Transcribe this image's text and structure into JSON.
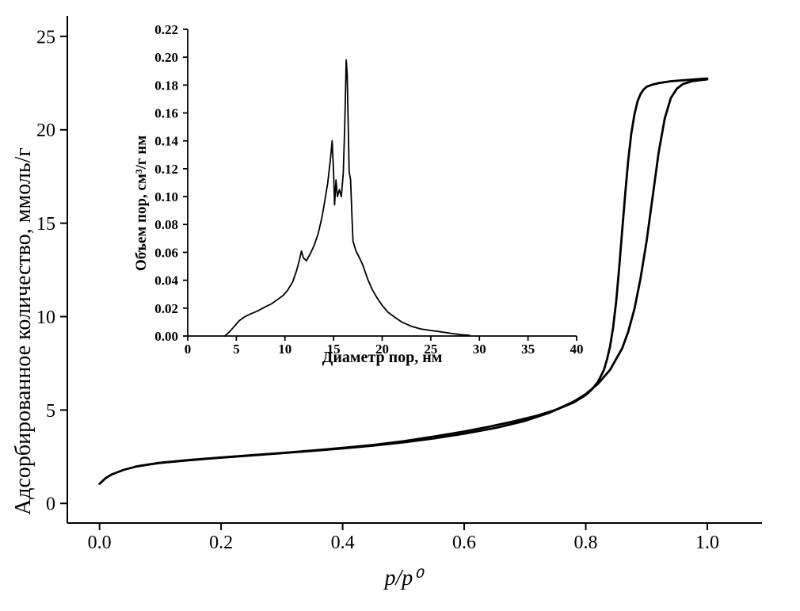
{
  "figure": {
    "background": "#ffffff",
    "line_color": "#000000"
  },
  "chart_data": [
    {
      "id": "main-isotherm",
      "type": "line",
      "title": "",
      "xlabel": "p/p⁰",
      "ylabel": "Адсорбированное количество, ммоль/г",
      "xlim": [
        0,
        1.0
      ],
      "ylim": [
        0,
        25
      ],
      "xticks": [
        0.0,
        0.2,
        0.4,
        0.6,
        0.8,
        1.0
      ],
      "xtick_labels": [
        "0.0",
        "0.2",
        "0.4",
        "0.6",
        "0.8",
        "1.0"
      ],
      "yticks": [
        0,
        5,
        10,
        15,
        20,
        25
      ],
      "ytick_labels": [
        "0",
        "5",
        "10",
        "15",
        "20",
        "25"
      ],
      "grid": false,
      "legend": "none",
      "line_color": "#000000",
      "series": [
        {
          "name": "adsorption",
          "points": [
            [
              0,
              1.05
            ],
            [
              0.01,
              1.35
            ],
            [
              0.02,
              1.55
            ],
            [
              0.04,
              1.8
            ],
            [
              0.06,
              1.97
            ],
            [
              0.08,
              2.08
            ],
            [
              0.1,
              2.17
            ],
            [
              0.15,
              2.32
            ],
            [
              0.2,
              2.45
            ],
            [
              0.25,
              2.57
            ],
            [
              0.3,
              2.69
            ],
            [
              0.35,
              2.81
            ],
            [
              0.4,
              2.94
            ],
            [
              0.45,
              3.09
            ],
            [
              0.5,
              3.27
            ],
            [
              0.55,
              3.48
            ],
            [
              0.6,
              3.73
            ],
            [
              0.65,
              4.03
            ],
            [
              0.7,
              4.42
            ],
            [
              0.74,
              4.85
            ],
            [
              0.78,
              5.45
            ],
            [
              0.8,
              5.85
            ],
            [
              0.82,
              6.4
            ],
            [
              0.84,
              7.15
            ],
            [
              0.86,
              8.3
            ],
            [
              0.87,
              9.2
            ],
            [
              0.88,
              10.4
            ],
            [
              0.89,
              12.0
            ],
            [
              0.9,
              14.0
            ],
            [
              0.91,
              16.4
            ],
            [
              0.92,
              18.8
            ],
            [
              0.93,
              20.6
            ],
            [
              0.94,
              21.7
            ],
            [
              0.95,
              22.2
            ],
            [
              0.96,
              22.45
            ],
            [
              0.975,
              22.6
            ],
            [
              1.0,
              22.7
            ]
          ]
        },
        {
          "name": "desorption",
          "points": [
            [
              1.0,
              22.75
            ],
            [
              0.98,
              22.7
            ],
            [
              0.96,
              22.65
            ],
            [
              0.94,
              22.6
            ],
            [
              0.92,
              22.5
            ],
            [
              0.91,
              22.42
            ],
            [
              0.9,
              22.3
            ],
            [
              0.895,
              22.15
            ],
            [
              0.89,
              21.9
            ],
            [
              0.885,
              21.5
            ],
            [
              0.88,
              20.8
            ],
            [
              0.875,
              19.8
            ],
            [
              0.87,
              18.4
            ],
            [
              0.865,
              16.6
            ],
            [
              0.86,
              14.6
            ],
            [
              0.855,
              12.6
            ],
            [
              0.85,
              10.8
            ],
            [
              0.845,
              9.4
            ],
            [
              0.84,
              8.4
            ],
            [
              0.835,
              7.7
            ],
            [
              0.83,
              7.15
            ],
            [
              0.82,
              6.5
            ],
            [
              0.81,
              6.1
            ],
            [
              0.8,
              5.8
            ],
            [
              0.78,
              5.4
            ],
            [
              0.75,
              5.0
            ],
            [
              0.72,
              4.7
            ],
            [
              0.68,
              4.38
            ],
            [
              0.64,
              4.1
            ],
            [
              0.6,
              3.85
            ],
            [
              0.55,
              3.58
            ],
            [
              0.5,
              3.33
            ],
            [
              0.45,
              3.13
            ],
            [
              0.4,
              2.97
            ],
            [
              0.35,
              2.83
            ],
            [
              0.3,
              2.7
            ],
            [
              0.25,
              2.58
            ],
            [
              0.2,
              2.46
            ],
            [
              0.15,
              2.33
            ],
            [
              0.1,
              2.18
            ],
            [
              0.06,
              1.98
            ]
          ]
        }
      ]
    },
    {
      "id": "inset-pore-distribution",
      "type": "line",
      "title": "",
      "xlabel": "Диаметр пор, нм",
      "ylabel": "Объем пор, см³/г нм",
      "xlim": [
        0,
        40
      ],
      "ylim": [
        0,
        0.22
      ],
      "xticks": [
        0,
        5,
        10,
        15,
        20,
        25,
        30,
        35,
        40
      ],
      "xtick_labels": [
        "0",
        "5",
        "10",
        "15",
        "20",
        "25",
        "30",
        "35",
        "40"
      ],
      "yticks": [
        0,
        0.02,
        0.04,
        0.06,
        0.08,
        0.1,
        0.12,
        0.14,
        0.16,
        0.18,
        0.2,
        0.22
      ],
      "ytick_labels": [
        "0.00",
        "0.02",
        "0.04",
        "0.06",
        "0.08",
        "0.10",
        "0.12",
        "0.14",
        "0.16",
        "0.18",
        "0.20",
        "0.22"
      ],
      "grid": false,
      "legend": "none",
      "line_color": "#000000",
      "series": [
        {
          "name": "pore-size-distribution",
          "points": [
            [
              3.8,
              0
            ],
            [
              4.3,
              0.003
            ],
            [
              4.8,
              0.007
            ],
            [
              5.3,
              0.011
            ],
            [
              5.9,
              0.014
            ],
            [
              6.5,
              0.016
            ],
            [
              7.2,
              0.018
            ],
            [
              8,
              0.021
            ],
            [
              8.6,
              0.023
            ],
            [
              9.2,
              0.026
            ],
            [
              9.8,
              0.029
            ],
            [
              10.3,
              0.033
            ],
            [
              10.8,
              0.039
            ],
            [
              11.2,
              0.047
            ],
            [
              11.5,
              0.055
            ],
            [
              11.7,
              0.061
            ],
            [
              11.9,
              0.056
            ],
            [
              12.2,
              0.054
            ],
            [
              12.6,
              0.059
            ],
            [
              13,
              0.065
            ],
            [
              13.4,
              0.073
            ],
            [
              13.8,
              0.085
            ],
            [
              14.1,
              0.097
            ],
            [
              14.4,
              0.11
            ],
            [
              14.7,
              0.128
            ],
            [
              14.85,
              0.14
            ],
            [
              15,
              0.118
            ],
            [
              15.1,
              0.094
            ],
            [
              15.25,
              0.112
            ],
            [
              15.4,
              0.1
            ],
            [
              15.6,
              0.105
            ],
            [
              15.8,
              0.1
            ],
            [
              16,
              0.117
            ],
            [
              16.15,
              0.15
            ],
            [
              16.3,
              0.198
            ],
            [
              16.4,
              0.188
            ],
            [
              16.5,
              0.155
            ],
            [
              16.6,
              0.118
            ],
            [
              16.75,
              0.112
            ],
            [
              16.9,
              0.085
            ],
            [
              17,
              0.068
            ],
            [
              17.3,
              0.061
            ],
            [
              17.6,
              0.057
            ],
            [
              18,
              0.051
            ],
            [
              18.5,
              0.041
            ],
            [
              19,
              0.033
            ],
            [
              19.5,
              0.027
            ],
            [
              20,
              0.022
            ],
            [
              20.6,
              0.017
            ],
            [
              21.2,
              0.014
            ],
            [
              22,
              0.01
            ],
            [
              23,
              0.007
            ],
            [
              24,
              0.005
            ],
            [
              25,
              0.004
            ],
            [
              26,
              0.003
            ],
            [
              27,
              0.002
            ],
            [
              28,
              0.001
            ],
            [
              29,
              0.0005
            ]
          ]
        }
      ]
    }
  ]
}
